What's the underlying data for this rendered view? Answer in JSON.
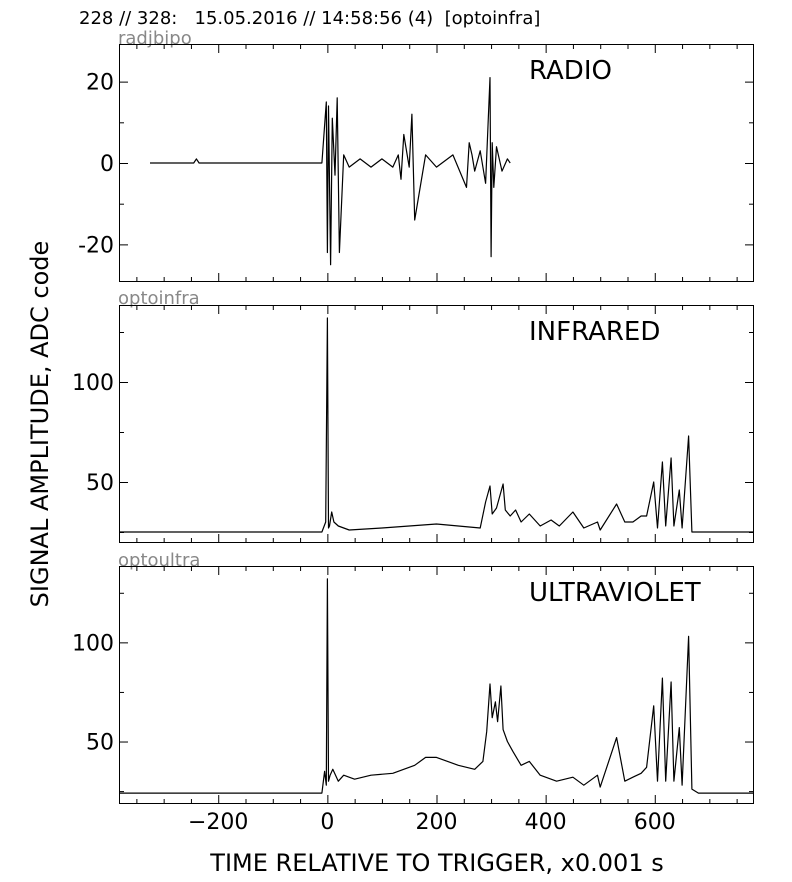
{
  "header": {
    "text": "228 // 328:   15.05.2016 // 14:58:56 (4)  [optoinfra]"
  },
  "axes": {
    "ylabel": "SIGNAL AMPLITUDE,  ADC code",
    "xlabel": "TIME RELATIVE TO TRIGGER,   x0.001 s",
    "x_tick_labels": [
      "−200",
      "0",
      "200",
      "400",
      "600"
    ]
  },
  "chart_data": [
    {
      "type": "line",
      "source": "radjbipo",
      "title": "RADIO",
      "xlim": [
        -380,
        780
      ],
      "ylim": [
        -29,
        29
      ],
      "yticks": [
        -20,
        0,
        20
      ],
      "ytick_labels": [
        "-20",
        "0",
        "20"
      ],
      "series": [
        {
          "x": [
            -325,
            -245,
            -240,
            -235,
            -10,
            -2,
            0,
            2,
            6,
            9,
            14,
            18,
            22,
            30,
            40,
            60,
            80,
            100,
            120,
            130,
            135,
            140,
            150,
            155,
            160,
            180,
            200,
            230,
            255,
            260,
            265,
            270,
            280,
            290,
            298,
            300,
            302,
            305,
            310,
            320,
            330,
            335
          ],
          "y": [
            0,
            0,
            1,
            0,
            0,
            15,
            -22,
            14,
            -25,
            11,
            -3,
            16,
            -22,
            2,
            -1,
            1,
            -1,
            1,
            -1,
            2,
            -4,
            7,
            -1,
            12,
            -14,
            2,
            -1,
            2,
            -6,
            5,
            2,
            -2,
            3,
            -5,
            21,
            -23,
            5,
            -6,
            4,
            -2,
            1,
            0
          ]
        }
      ]
    },
    {
      "type": "line",
      "source": "optoinfra",
      "title": "INFRARED",
      "xlim": [
        -380,
        780
      ],
      "ylim": [
        20,
        138
      ],
      "yticks": [
        50,
        100
      ],
      "ytick_labels": [
        "50",
        "100"
      ],
      "series": [
        {
          "x": [
            -380,
            -200,
            -10,
            -3,
            0,
            2,
            4,
            8,
            12,
            20,
            40,
            100,
            200,
            280,
            290,
            298,
            302,
            310,
            318,
            322,
            326,
            335,
            345,
            355,
            370,
            390,
            410,
            425,
            450,
            470,
            495,
            500,
            530,
            545,
            560,
            575,
            585,
            598,
            605,
            614,
            620,
            630,
            635,
            645,
            650,
            662,
            668,
            680,
            780
          ],
          "y": [
            25,
            25,
            25,
            30,
            132,
            27,
            28,
            35,
            30,
            28,
            26,
            27,
            29,
            27,
            40,
            48,
            34,
            37,
            45,
            49,
            36,
            33,
            36,
            30,
            34,
            28,
            31,
            28,
            35,
            27,
            30,
            26,
            39,
            30,
            30,
            33,
            33,
            50,
            27,
            60,
            28,
            62,
            28,
            46,
            27,
            73,
            25,
            25,
            25
          ]
        }
      ]
    },
    {
      "type": "line",
      "source": "optoultra",
      "title": "ULTRAVIOLET",
      "xlim": [
        -380,
        780
      ],
      "ylim": [
        19,
        138
      ],
      "yticks": [
        50,
        100
      ],
      "ytick_labels": [
        "50",
        "100"
      ],
      "series": [
        {
          "x": [
            -380,
            -200,
            -10,
            -5,
            -2,
            0,
            2,
            5,
            10,
            20,
            30,
            50,
            80,
            120,
            160,
            180,
            200,
            240,
            270,
            285,
            292,
            298,
            302,
            308,
            312,
            318,
            322,
            330,
            340,
            355,
            370,
            390,
            420,
            450,
            470,
            495,
            500,
            530,
            545,
            560,
            575,
            585,
            598,
            605,
            614,
            620,
            630,
            635,
            645,
            650,
            662,
            668,
            680,
            780
          ],
          "y": [
            24,
            24,
            24,
            35,
            28,
            132,
            30,
            33,
            36,
            30,
            33,
            31,
            33,
            34,
            38,
            42,
            42,
            38,
            36,
            40,
            55,
            79,
            62,
            70,
            60,
            78,
            56,
            50,
            45,
            38,
            40,
            33,
            30,
            32,
            28,
            33,
            27,
            52,
            30,
            32,
            34,
            37,
            68,
            30,
            82,
            30,
            80,
            30,
            57,
            28,
            103,
            26,
            24,
            24
          ]
        }
      ]
    }
  ]
}
